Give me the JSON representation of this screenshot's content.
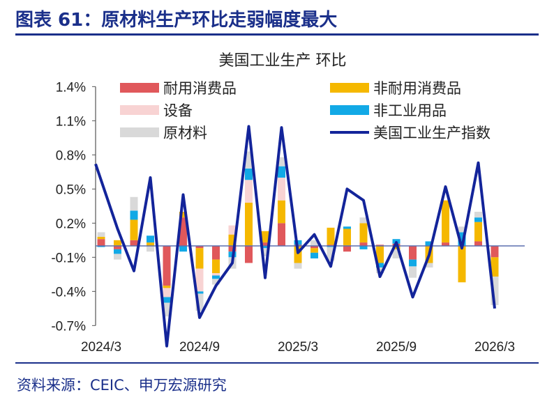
{
  "figure_title": "图表 61：原材料生产环比走弱幅度最大",
  "source": "资料来源：CEIC、申万宏源研究",
  "colors": {
    "heading": "#1a2f8a",
    "durable": "#e0585b",
    "nondurable": "#f5b800",
    "equipment": "#f8d3d3",
    "nonindustrial": "#12a9e6",
    "materials": "#d9d9d9",
    "index": "#13249a",
    "zero_line": "#5b6fae"
  },
  "chart_data": {
    "type": "bar",
    "stacked": true,
    "title": "美国工业生产 环比",
    "y_tick_labels": [
      "1.4%",
      "1.1%",
      "0.8%",
      "0.5%",
      "0.2%",
      "-0.1%",
      "-0.4%",
      "-0.7%"
    ],
    "y_ticks": [
      1.4,
      1.1,
      0.8,
      0.5,
      0.2,
      -0.1,
      -0.4,
      -0.7
    ],
    "ylim": [
      -0.7,
      1.4
    ],
    "x_tick_labels": [
      "2024/3",
      "2024/9",
      "2025/3",
      "2025/9",
      "2026/3"
    ],
    "x_tick_index": [
      0,
      6,
      12,
      18,
      24
    ],
    "grid": false,
    "legend_position": "top",
    "categories": [
      "2024/3",
      "2024/4",
      "2024/5",
      "2024/6",
      "2024/7",
      "2024/8",
      "2024/9",
      "2024/10",
      "2024/11",
      "2024/12",
      "2025/1",
      "2025/2",
      "2025/3",
      "2025/4",
      "2025/5",
      "2025/6",
      "2025/7",
      "2025/8",
      "2025/9",
      "2025/10",
      "2025/11",
      "2025/12",
      "2026/1",
      "2026/2",
      "2026/3"
    ],
    "series": [
      {
        "name": "耐用消费品",
        "color_key": "durable",
        "kind": "bar",
        "values": [
          0.06,
          -0.03,
          0.05,
          0.0,
          -0.35,
          0.25,
          -0.02,
          -0.12,
          -0.05,
          -0.15,
          0.03,
          0.2,
          0.01,
          -0.02,
          0.01,
          -0.05,
          0.03,
          0.01,
          0.02,
          -0.12,
          0.0,
          0.03,
          0.0,
          0.04,
          -0.1
        ]
      },
      {
        "name": "非耐用消费品",
        "color_key": "nondurable",
        "kind": "bar",
        "values": [
          0.02,
          0.05,
          0.18,
          0.03,
          -0.02,
          0.05,
          -0.18,
          -0.12,
          0.1,
          0.38,
          0.1,
          0.2,
          -0.15,
          -0.04,
          0.15,
          0.15,
          0.17,
          -0.15,
          -0.03,
          0.0,
          -0.15,
          0.37,
          -0.32,
          0.17,
          -0.17
        ]
      },
      {
        "name": "设备",
        "color_key": "equipment",
        "kind": "bar",
        "values": [
          0.0,
          0.0,
          0.0,
          0.0,
          -0.08,
          0.0,
          -0.2,
          -0.02,
          0.08,
          0.2,
          0.0,
          0.2,
          0.0,
          0.0,
          0.0,
          0.0,
          0.0,
          0.0,
          0.0,
          0.0,
          0.0,
          0.0,
          0.0,
          0.0,
          0.0
        ]
      },
      {
        "name": "非工业用品",
        "color_key": "nonindustrial",
        "kind": "bar",
        "values": [
          -0.01,
          -0.04,
          0.08,
          0.06,
          -0.05,
          -0.05,
          -0.02,
          -0.03,
          -0.05,
          0.1,
          -0.02,
          0.1,
          0.04,
          -0.05,
          -0.01,
          0.02,
          -0.03,
          -0.04,
          0.04,
          -0.06,
          0.04,
          0.0,
          0.12,
          0.04,
          0.0
        ]
      },
      {
        "name": "原材料",
        "color_key": "materials",
        "kind": "bar",
        "values": [
          0.04,
          -0.05,
          0.12,
          -0.05,
          -0.12,
          0.0,
          -0.15,
          -0.05,
          -0.1,
          0.15,
          -0.07,
          0.08,
          -0.05,
          0.05,
          -0.12,
          0.0,
          0.05,
          -0.05,
          -0.08,
          -0.1,
          -0.04,
          0.0,
          0.05,
          0.05,
          -0.25
        ]
      },
      {
        "name": "美国工业生产指数",
        "color_key": "index",
        "kind": "line",
        "values": [
          0.72,
          0.15,
          -0.22,
          0.6,
          -0.88,
          0.45,
          -0.63,
          -0.35,
          -0.15,
          1.05,
          -0.28,
          1.04,
          -0.06,
          0.1,
          -0.18,
          0.5,
          0.4,
          -0.27,
          0.03,
          -0.45,
          -0.08,
          0.52,
          -0.02,
          0.73,
          -0.55
        ]
      }
    ]
  }
}
